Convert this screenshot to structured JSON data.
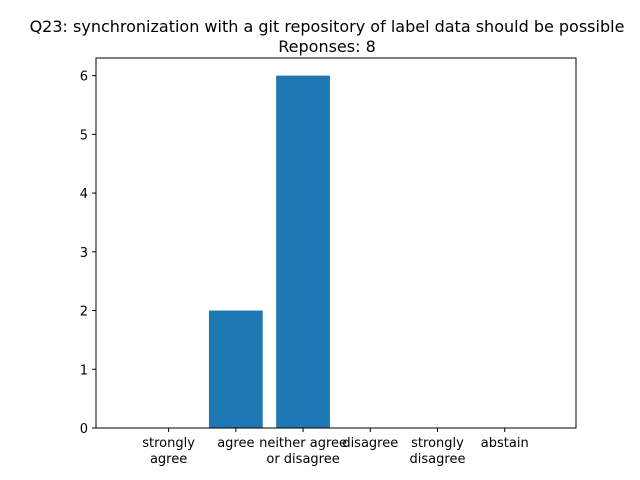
{
  "chart_data": {
    "type": "bar",
    "title": "Q23: synchronization with a git repository of label data should be possible",
    "subtitle": "Reponses: 8",
    "categories": [
      [
        "strongly",
        "agree"
      ],
      [
        "agree"
      ],
      [
        "neither agree",
        "or disagree"
      ],
      [
        "disagree"
      ],
      [
        "strongly",
        "disagree"
      ],
      [
        "abstain"
      ]
    ],
    "values": [
      0,
      2,
      6,
      0,
      0,
      0
    ],
    "y_ticks": [
      0,
      1,
      2,
      3,
      4,
      5,
      6
    ],
    "ylim": [
      0,
      6.3
    ],
    "xlabel": "",
    "ylabel": "",
    "grid": false,
    "bar_color": "#1f77b4"
  }
}
